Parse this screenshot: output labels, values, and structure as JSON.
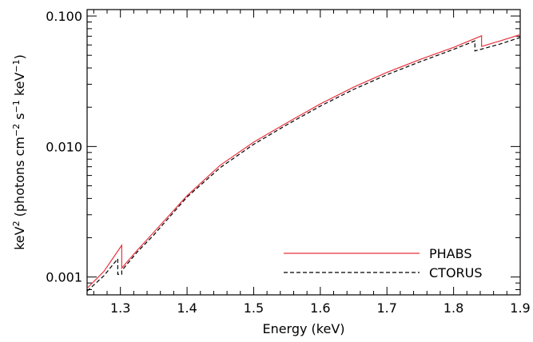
{
  "chart_data": {
    "type": "line",
    "title": "",
    "xlabel": "Energy (keV)",
    "ylabel": {
      "base": "keV",
      "sup1": "2",
      "mid": " (photons cm",
      "sup2": "−2",
      "mid2": " s",
      "sup3": "−1",
      "mid3": " keV",
      "sup4": "−1",
      "end": ")"
    },
    "x_scale": "linear",
    "y_scale": "log",
    "xlim": [
      1.25,
      1.9
    ],
    "ylim": [
      0.00073,
      0.112
    ],
    "x_ticks": [
      1.3,
      1.4,
      1.5,
      1.6,
      1.7,
      1.8,
      1.9
    ],
    "x_tick_labels": [
      "1.3",
      "1.4",
      "1.5",
      "1.6",
      "1.7",
      "1.8",
      "1.9"
    ],
    "y_ticks": [
      0.001,
      0.01,
      0.1
    ],
    "y_tick_labels": [
      "0.001",
      "0.010",
      "0.100"
    ],
    "grid": false,
    "legend_position": "bottom-right",
    "series": [
      {
        "name": "PHABS",
        "color": "#e8323c",
        "style": "solid",
        "points": [
          [
            1.25,
            0.00082
          ],
          [
            1.275,
            0.0011
          ],
          [
            1.302,
            0.00175
          ],
          [
            1.302,
            0.00117
          ],
          [
            1.325,
            0.0016
          ],
          [
            1.35,
            0.0022
          ],
          [
            1.4,
            0.0042
          ],
          [
            1.45,
            0.0072
          ],
          [
            1.5,
            0.0108
          ],
          [
            1.55,
            0.0152
          ],
          [
            1.6,
            0.0212
          ],
          [
            1.65,
            0.0285
          ],
          [
            1.7,
            0.037
          ],
          [
            1.75,
            0.0465
          ],
          [
            1.8,
            0.0575
          ],
          [
            1.842,
            0.0705
          ],
          [
            1.842,
            0.0585
          ],
          [
            1.87,
            0.0645
          ],
          [
            1.9,
            0.072
          ]
        ]
      },
      {
        "name": "CTORUS",
        "color": "#000000",
        "style": "dashed",
        "points": [
          [
            1.25,
            0.00078
          ],
          [
            1.275,
            0.00102
          ],
          [
            1.296,
            0.00138
          ],
          [
            1.296,
            0.00105
          ],
          [
            1.302,
            0.00105
          ],
          [
            1.302,
            0.00112
          ],
          [
            1.325,
            0.00155
          ],
          [
            1.35,
            0.0021
          ],
          [
            1.4,
            0.0041
          ],
          [
            1.45,
            0.0069
          ],
          [
            1.5,
            0.0104
          ],
          [
            1.55,
            0.0147
          ],
          [
            1.6,
            0.0204
          ],
          [
            1.65,
            0.0274
          ],
          [
            1.7,
            0.0355
          ],
          [
            1.75,
            0.0447
          ],
          [
            1.8,
            0.0555
          ],
          [
            1.832,
            0.0645
          ],
          [
            1.832,
            0.054
          ],
          [
            1.87,
            0.061
          ],
          [
            1.9,
            0.0685
          ]
        ]
      }
    ]
  }
}
